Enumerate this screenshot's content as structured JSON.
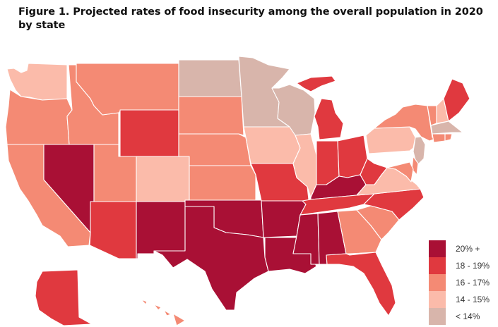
{
  "title": "Figure 1. Projected rates of food insecurity among the overall population in 2020 by state",
  "chart_data": {
    "type": "choropleth",
    "title": "Figure 1. Projected rates of food insecurity among the overall population in 2020 by state",
    "legend_position": "bottom-right",
    "categories": [
      {
        "key": "c5",
        "label": "20% +",
        "color": "#A91035"
      },
      {
        "key": "c4",
        "label": "18 - 19%",
        "color": "#E0393F"
      },
      {
        "key": "c3",
        "label": "16 - 17%",
        "color": "#F48A74"
      },
      {
        "key": "c2",
        "label": "14 - 15%",
        "color": "#FBBBAA"
      },
      {
        "key": "c1",
        "label": "< 14%",
        "color": "#D8B5AB"
      }
    ],
    "states": {
      "WA": "c2",
      "OR": "c3",
      "CA": "c3",
      "ID": "c3",
      "NV": "c5",
      "MT": "c3",
      "WY": "c4",
      "UT": "c3",
      "AZ": "c4",
      "CO": "c2",
      "NM": "c5",
      "ND": "c1",
      "SD": "c3",
      "NE": "c3",
      "KS": "c3",
      "OK": "c5",
      "TX": "c5",
      "MN": "c1",
      "IA": "c2",
      "MO": "c4",
      "AR": "c5",
      "LA": "c5",
      "WI": "c1",
      "IL": "c2",
      "MI": "c4",
      "IN": "c4",
      "OH": "c4",
      "KY": "c5",
      "TN": "c4",
      "MS": "c5",
      "AL": "c5",
      "GA": "c3",
      "FL": "c4",
      "SC": "c3",
      "NC": "c4",
      "VA": "c2",
      "WV": "c4",
      "PA": "c2",
      "NY": "c3",
      "VT": "c3",
      "NH": "c2",
      "ME": "c4",
      "MA": "c1",
      "CT": "c3",
      "RI": "c3",
      "NJ": "c1",
      "DE": "c3",
      "MD": "c3",
      "AK": "c4",
      "HI": "c3"
    }
  }
}
